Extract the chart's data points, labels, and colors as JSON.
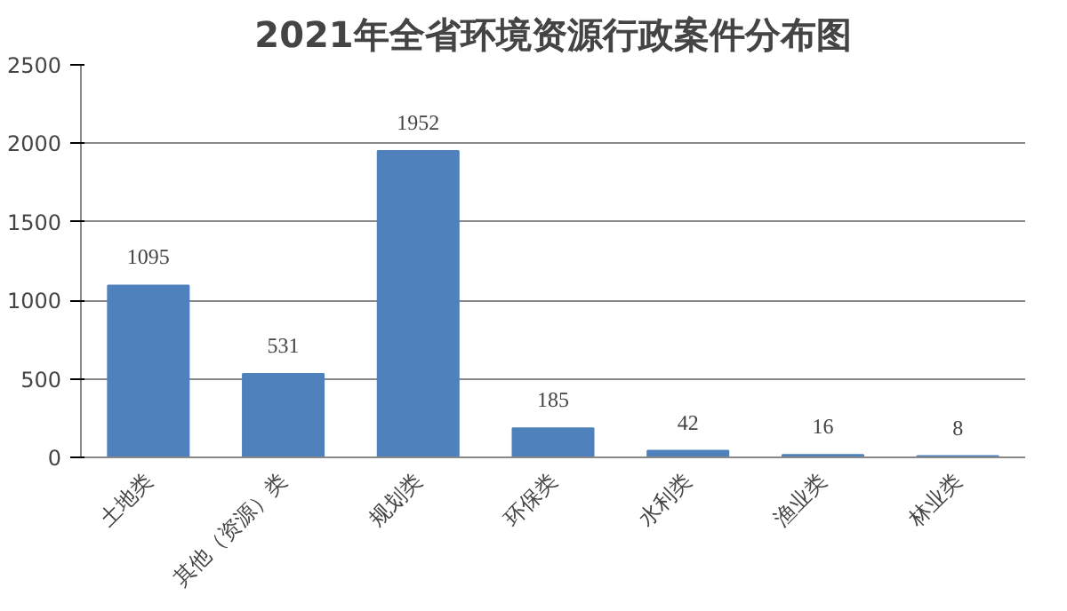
{
  "chart_data": {
    "type": "bar",
    "title": "2021年全省环境资源行政案件分布图",
    "categories": [
      "土地类",
      "其他（资源）类",
      "规划类",
      "环保类",
      "水利类",
      "渔业类",
      "林业类"
    ],
    "values": [
      1095,
      531,
      1952,
      185,
      42,
      16,
      8
    ],
    "color": "#4f81bd",
    "ylim": [
      0,
      2500
    ],
    "yticks": [
      0,
      500,
      1000,
      1500,
      2000,
      2500
    ],
    "grid": "y",
    "data_labels": true
  }
}
